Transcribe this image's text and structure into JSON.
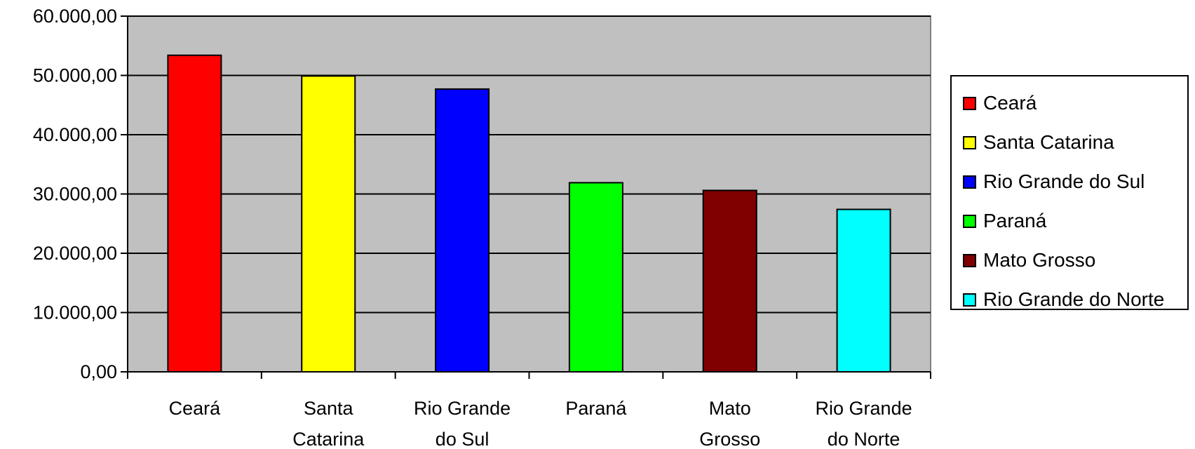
{
  "chart_data": {
    "type": "bar",
    "categories": [
      "Ceará",
      "Santa Catarina",
      "Rio Grande do Sul",
      "Paraná",
      "Mato Grosso",
      "Rio Grande do Norte"
    ],
    "category_labels": [
      [
        "Ceará"
      ],
      [
        "Santa",
        "Catarina"
      ],
      [
        "Rio Grande",
        "do Sul"
      ],
      [
        "Paraná"
      ],
      [
        "Mato",
        "Grosso"
      ],
      [
        "Rio Grande",
        "do Norte"
      ]
    ],
    "values": [
      53400,
      49900,
      47700,
      31900,
      30600,
      27400
    ],
    "colors": [
      "#ff0000",
      "#ffff00",
      "#0000ff",
      "#00ff00",
      "#800000",
      "#00ffff"
    ],
    "ylim": [
      0,
      60000
    ],
    "yticks": [
      0,
      10000,
      20000,
      30000,
      40000,
      50000,
      60000
    ],
    "ytick_labels": [
      "0,00",
      "10.000,00",
      "20.000,00",
      "30.000,00",
      "40.000,00",
      "50.000,00",
      "60.000,00"
    ],
    "grid": true,
    "plot_background": "#c0c0c0",
    "legend_position": "right",
    "legend": [
      "Ceará",
      "Santa Catarina",
      "Rio Grande do Sul",
      "Paraná",
      "Mato Grosso",
      "Rio Grande do Norte"
    ]
  }
}
